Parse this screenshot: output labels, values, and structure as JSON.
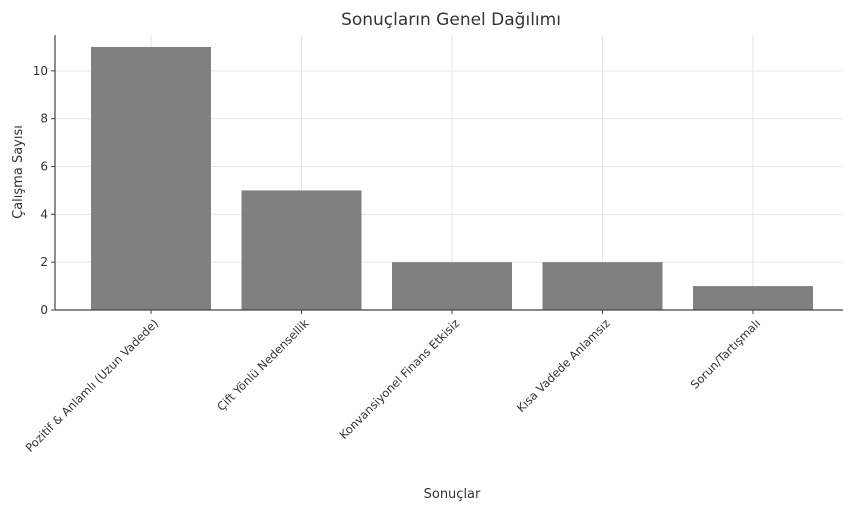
{
  "chart_data": {
    "type": "bar",
    "title": "Sonuçların Genel Dağılımı",
    "xlabel": "Sonuçlar",
    "ylabel": "Çalışma Sayısı",
    "categories": [
      "Pozitif & Anlamlı (Uzun Vadede)",
      "Çift Yönlü Nedensellik",
      "Konvansiyonel Finans Etkisiz",
      "Kısa Vadede Anlamsız",
      "Sorun/Tartışmalı"
    ],
    "values": [
      11,
      5,
      2,
      2,
      1
    ],
    "ylim": [
      0,
      11.5
    ],
    "yticks": [
      0,
      2,
      4,
      6,
      8,
      10
    ],
    "grid": true,
    "bar_color": "#808080"
  }
}
